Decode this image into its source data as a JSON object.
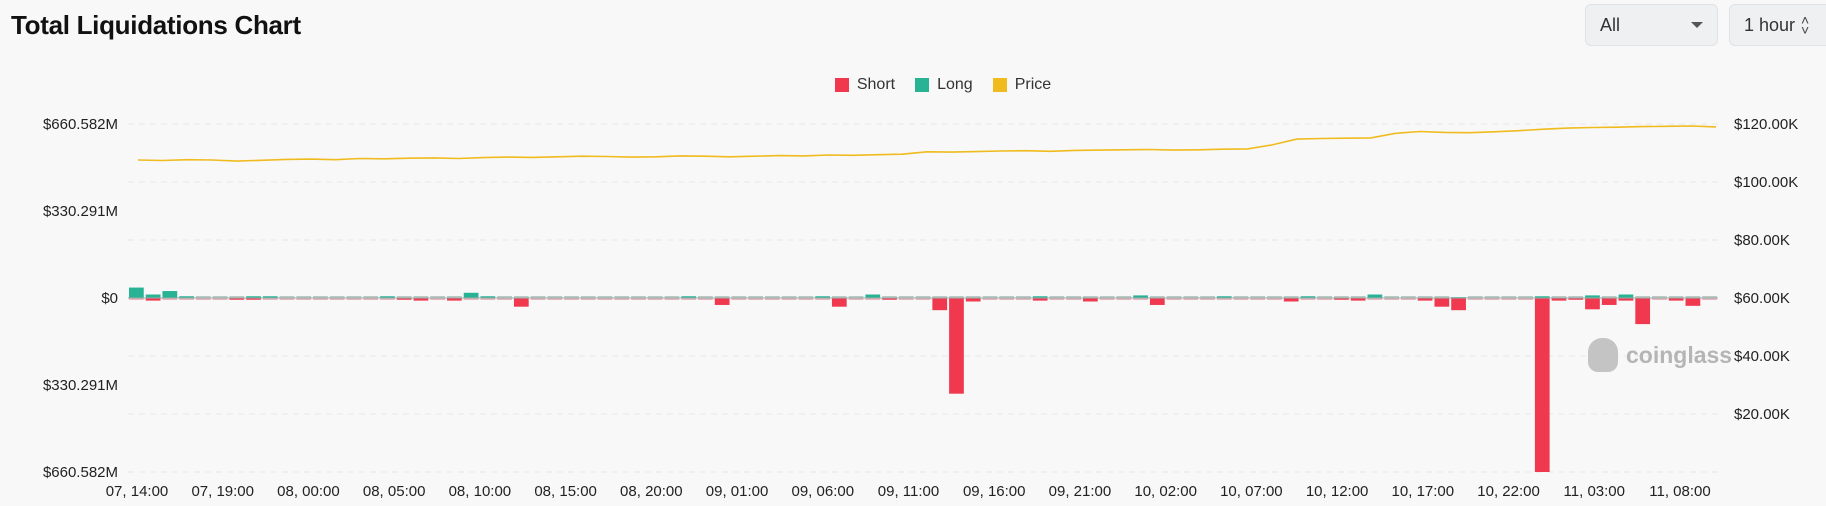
{
  "header": {
    "title": "Total Liquidations Chart",
    "filter_label": "All",
    "interval_label": "1 hour"
  },
  "legend": [
    {
      "label": "Short",
      "color": "#f0394f"
    },
    {
      "label": "Long",
      "color": "#27b394"
    },
    {
      "label": "Price",
      "color": "#f0bb1e"
    }
  ],
  "watermark": "coinglass",
  "chart_data": {
    "type": "bar",
    "title": "Total Liquidations Chart",
    "left_axis_ticks": [
      "$660.582M",
      "$330.291M",
      "$0",
      "$330.291M",
      "$660.582M"
    ],
    "left_axis_range": [
      -660.582,
      660.582
    ],
    "right_axis_ticks": [
      "$120.00K",
      "$100.00K",
      "$80.00K",
      "$60.00K",
      "$40.00K",
      "$20.00K"
    ],
    "right_axis_range": [
      0,
      120000
    ],
    "x_tick_labels": [
      "07, 14:00",
      "07, 19:00",
      "08, 00:00",
      "08, 05:00",
      "08, 10:00",
      "08, 15:00",
      "08, 20:00",
      "09, 01:00",
      "09, 06:00",
      "09, 11:00",
      "09, 16:00",
      "09, 21:00",
      "10, 02:00",
      "10, 07:00",
      "10, 12:00",
      "10, 17:00",
      "10, 22:00",
      "11, 03:00",
      "11, 08:00"
    ],
    "grid": true,
    "legend_position": "top-center",
    "colors": {
      "short": "#f0394f",
      "long": "#27b394",
      "price": "#f0bb1e"
    },
    "series": [
      {
        "name": "Long",
        "values": [
          22,
          14,
          18,
          5,
          3,
          3,
          3,
          5,
          10,
          9,
          3,
          3,
          3,
          3,
          3,
          3,
          3,
          3,
          3,
          3,
          3,
          3,
          3,
          3,
          3,
          3,
          3,
          3,
          3,
          3,
          3,
          3,
          3,
          3,
          3,
          3,
          5,
          5,
          3,
          3,
          3,
          3,
          3,
          3,
          3,
          3,
          3,
          3,
          3,
          3,
          3,
          3,
          3,
          3,
          3,
          3,
          3,
          3,
          3,
          3,
          3,
          3,
          3,
          3,
          3,
          3,
          3,
          3,
          3,
          3,
          3,
          3,
          3,
          3,
          3,
          3,
          3,
          3,
          3,
          3,
          3,
          3,
          3,
          3,
          3,
          3,
          3,
          3,
          3,
          3,
          3,
          3,
          3,
          3,
          3,
          3,
          3,
          3,
          3,
          3,
          3,
          3,
          3,
          3,
          3,
          3,
          3,
          3,
          3,
          3,
          3,
          3,
          3,
          3,
          3,
          3,
          3,
          3,
          3,
          3,
          3,
          3,
          3,
          3,
          3,
          3,
          3,
          3,
          3,
          3,
          3,
          3,
          3,
          3,
          3,
          3,
          3,
          3,
          3,
          3,
          3,
          3,
          3,
          3,
          3,
          3,
          3,
          3,
          3,
          3,
          3,
          3,
          3,
          3,
          3,
          3,
          3,
          3,
          3,
          3,
          3,
          3,
          3,
          3,
          3,
          3,
          3,
          3,
          3,
          3,
          3,
          3,
          3,
          3,
          3,
          3,
          3,
          3,
          3,
          3,
          3,
          3,
          3,
          3,
          3,
          3,
          3,
          3,
          3,
          3,
          3,
          3,
          3,
          3,
          3,
          3,
          3,
          3,
          3,
          3,
          3,
          3,
          3,
          3,
          3,
          3,
          3,
          3,
          3,
          3,
          3,
          3,
          3,
          3,
          3,
          3,
          3,
          3,
          3,
          3,
          3,
          3,
          3,
          3,
          3,
          3,
          3,
          3,
          3,
          3,
          3,
          3,
          3,
          3,
          3,
          3,
          3,
          3,
          3,
          3,
          3,
          3,
          3,
          3,
          3,
          3,
          3,
          3,
          3,
          3,
          3,
          3,
          3,
          3,
          3,
          3,
          3,
          3,
          3,
          3,
          3,
          3,
          3,
          3,
          3,
          3,
          3,
          3,
          3,
          3,
          3,
          3,
          3,
          3,
          3,
          3,
          3,
          3,
          3,
          3,
          3,
          3,
          3,
          3,
          3,
          3,
          3,
          3,
          3,
          3,
          3,
          3,
          3,
          3,
          3,
          3,
          3,
          3,
          3,
          3,
          3,
          3,
          3,
          3,
          3,
          3,
          3,
          3,
          3,
          3,
          3,
          3,
          3,
          3,
          3,
          3,
          3,
          3,
          3,
          3,
          3,
          3,
          3,
          3,
          3,
          3,
          3,
          3,
          3,
          3,
          3,
          3,
          3,
          3,
          3,
          3,
          3,
          3,
          3,
          3,
          3,
          3,
          3,
          3,
          3,
          3,
          3,
          3,
          3,
          3,
          3,
          3,
          3,
          3,
          3,
          3,
          3,
          3,
          3,
          3,
          3,
          3,
          3,
          3,
          3,
          3,
          3,
          3,
          3,
          3,
          3,
          3,
          3,
          3,
          3,
          3,
          3,
          3,
          3,
          3,
          3,
          3,
          3,
          3,
          3,
          3,
          3,
          3,
          3,
          3,
          3,
          3,
          3,
          3,
          3,
          3,
          3,
          3,
          3,
          3,
          3,
          3,
          3,
          3,
          3,
          3,
          3,
          3,
          3,
          3,
          3,
          3,
          3,
          3,
          3,
          3,
          3,
          3,
          3,
          3,
          3,
          3,
          3,
          3,
          3,
          3,
          3,
          3,
          3,
          3,
          3,
          3,
          3,
          3,
          3,
          3,
          3,
          3,
          3,
          3
        ]
      },
      {
        "name": "Short",
        "values": []
      },
      {
        "name": "Price",
        "values": []
      }
    ]
  }
}
